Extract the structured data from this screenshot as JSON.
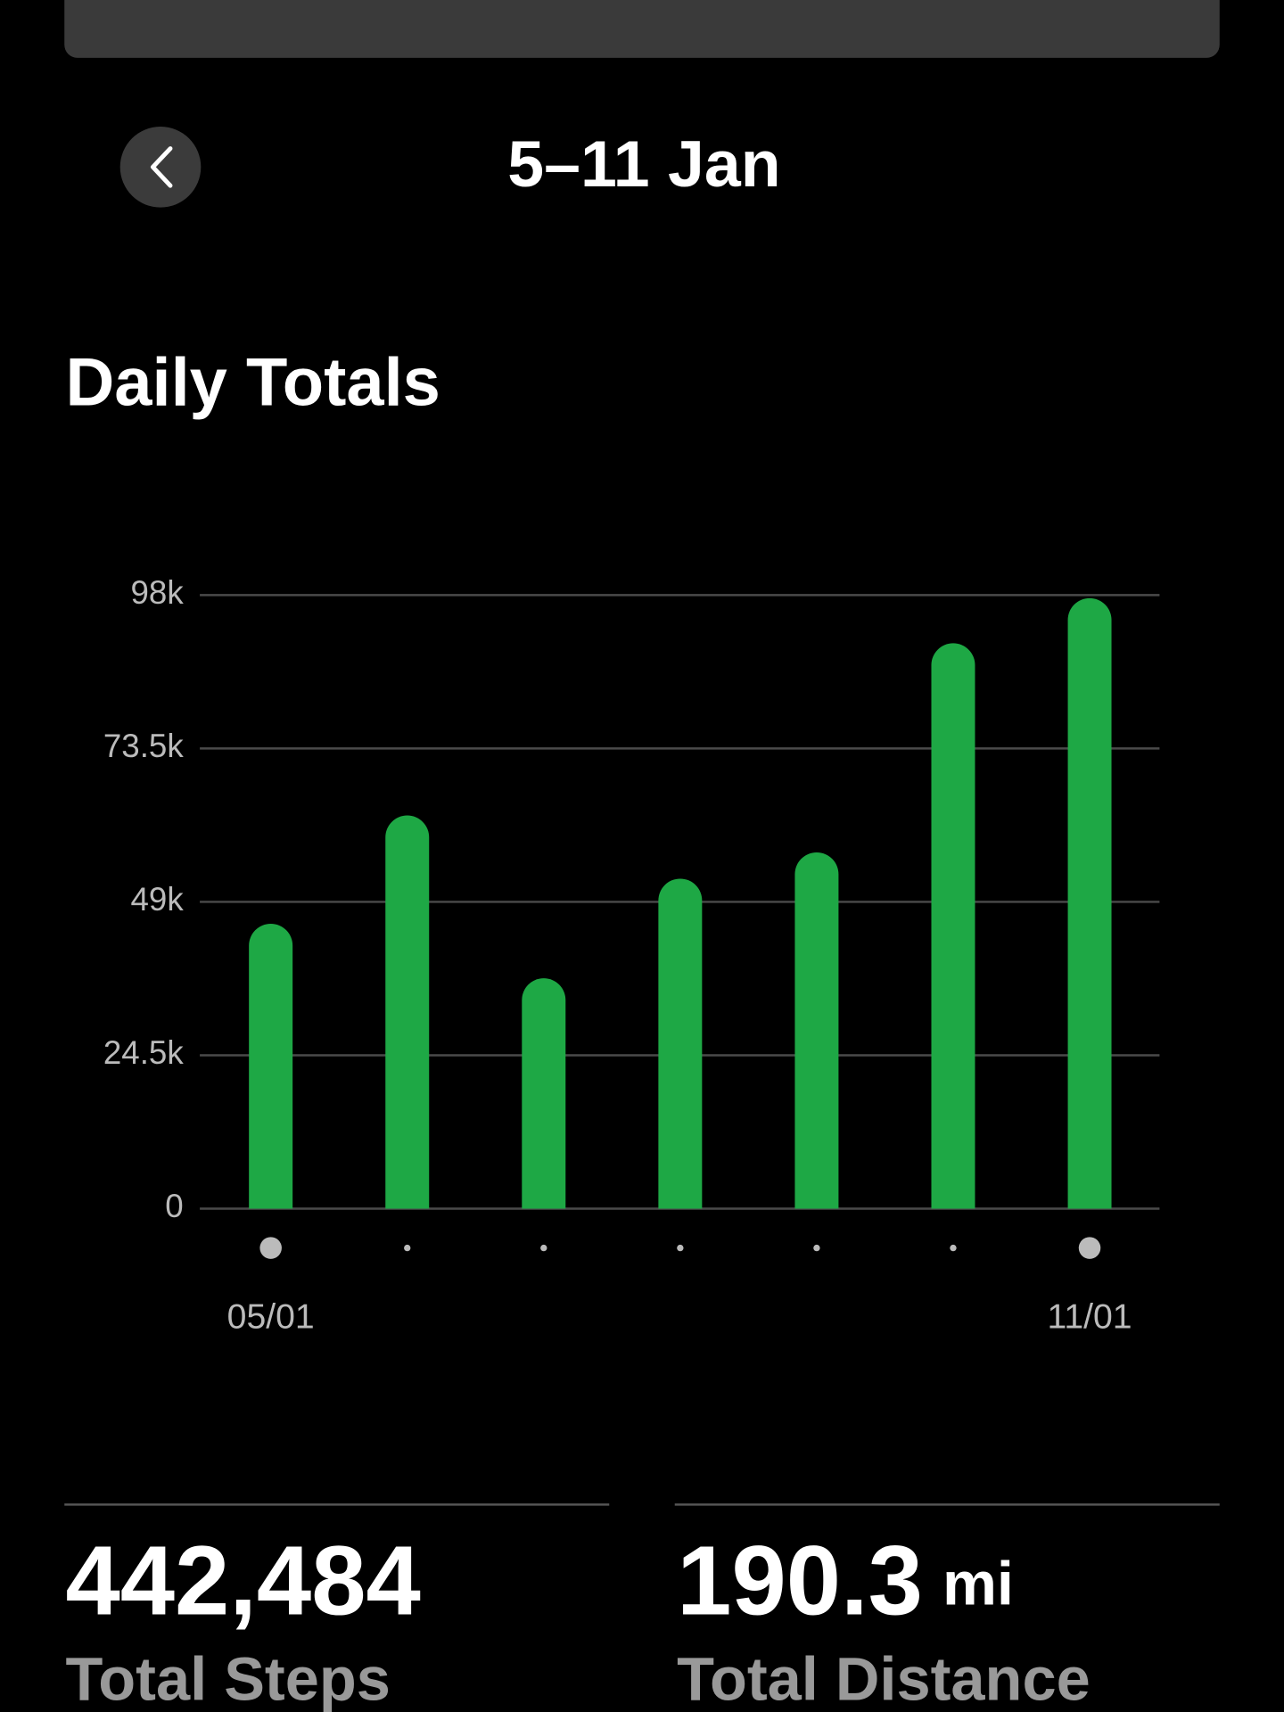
{
  "header": {
    "title": "5–11 Jan"
  },
  "chart_data": {
    "type": "bar",
    "title": "Daily Totals",
    "categories": [
      "05/01",
      null,
      null,
      null,
      null,
      null,
      "11/01"
    ],
    "values": [
      45500,
      62800,
      36800,
      52700,
      56900,
      90300,
      97500
    ],
    "color": "#1ea845",
    "ylim": [
      0,
      98000
    ],
    "yticks": [
      0,
      {
        "value": 24500,
        "label": "24.5k"
      },
      {
        "value": 49000,
        "label": "49k"
      },
      {
        "value": 73500,
        "label": "73.5k"
      },
      {
        "value": 98000,
        "label": "98k"
      }
    ],
    "grid": true
  },
  "stats": [
    {
      "value": "442,484",
      "label": "Total Steps"
    },
    {
      "value": "190.3",
      "unit": "mi",
      "label": "Total Distance"
    }
  ]
}
